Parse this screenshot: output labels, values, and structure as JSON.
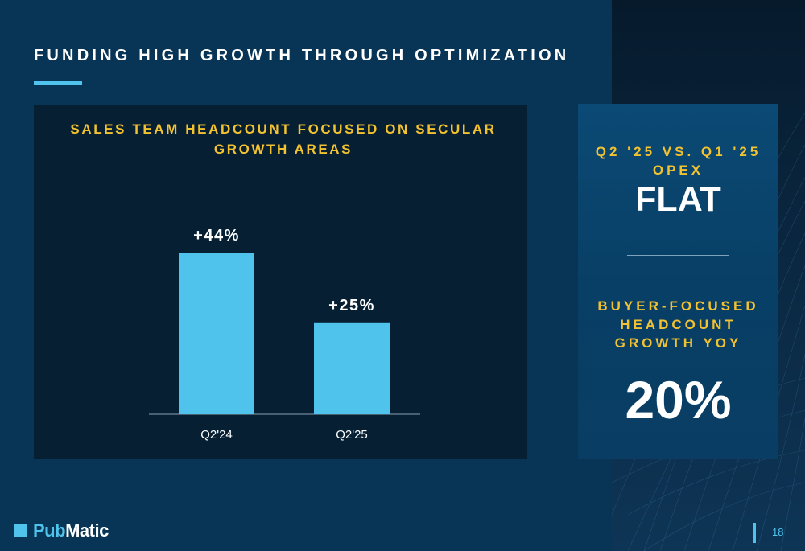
{
  "slide": {
    "title": "FUNDING HIGH GROWTH THROUGH OPTIMIZATION",
    "page_number": "18",
    "logo": {
      "part1": "Pub",
      "part2": "Matic"
    }
  },
  "side": {
    "metric1_label_line1": "Q2 '25 VS. Q1 '25",
    "metric1_label_line2": "OPEX",
    "metric1_value": "FLAT",
    "metric2_label_line1": "BUYER-FOCUSED",
    "metric2_label_line2": "HEADCOUNT",
    "metric2_label_line3": "GROWTH YOY",
    "metric2_value": "20%"
  },
  "colors": {
    "accent_blue": "#4fc3ec",
    "accent_yellow": "#f2c230",
    "background": "#083556",
    "panel": "#061f33"
  },
  "chart_data": {
    "type": "bar",
    "title_line1": "SALES TEAM HEADCOUNT FOCUSED ON SECULAR",
    "title_line2": "GROWTH AREAS",
    "categories": [
      "Q2'24",
      "Q2'25"
    ],
    "values": [
      44,
      25
    ],
    "data_labels": [
      "+44%",
      "+25%"
    ],
    "grid": false
  }
}
